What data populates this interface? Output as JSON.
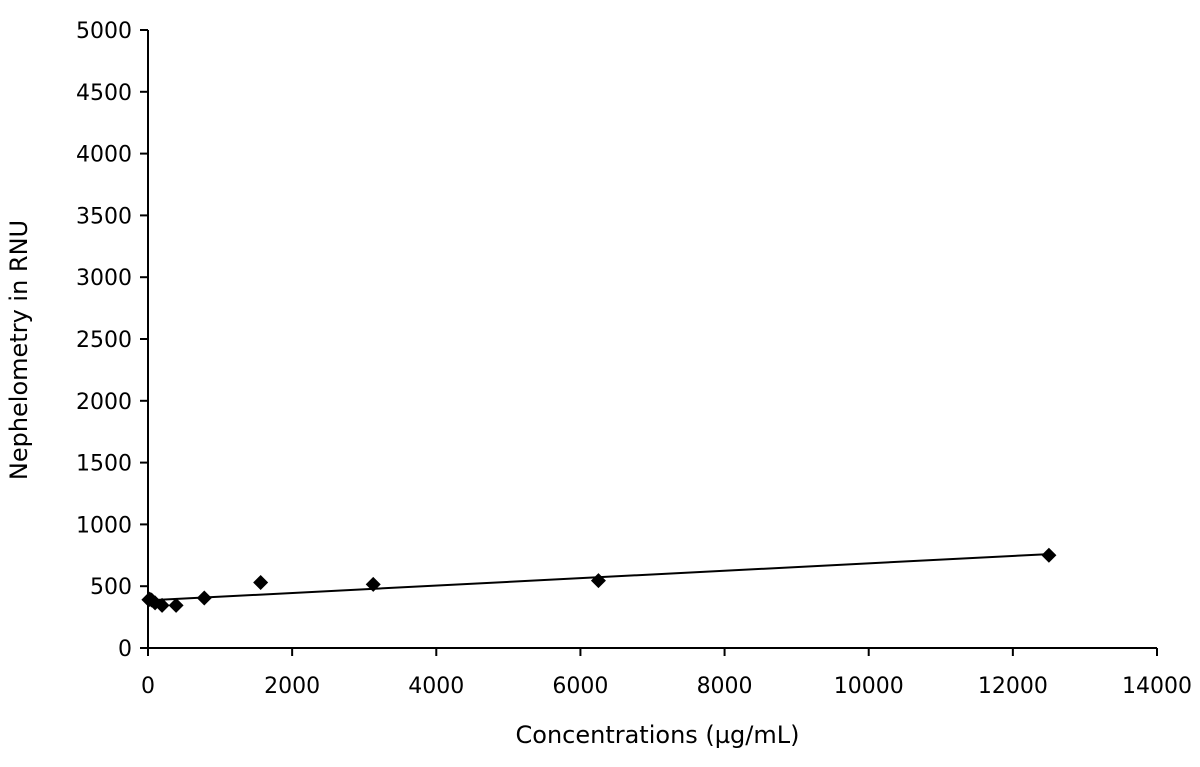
{
  "chart_data": {
    "type": "scatter",
    "title": "",
    "xlabel": "Concentrations (µg/mL)",
    "ylabel": "Nephelometry in RNU",
    "xlim": [
      0,
      14000
    ],
    "ylim": [
      0,
      5000
    ],
    "x_ticks": [
      0,
      2000,
      4000,
      6000,
      8000,
      10000,
      12000,
      14000
    ],
    "y_ticks": [
      0,
      500,
      1000,
      1500,
      2000,
      2500,
      3000,
      3500,
      4000,
      4500,
      5000
    ],
    "grid": false,
    "legend": "none",
    "marker": "diamond",
    "marker_color": "#000000",
    "series": [
      {
        "points": [
          {
            "x": 12,
            "y": 390
          },
          {
            "x": 24,
            "y": 395
          },
          {
            "x": 49,
            "y": 388
          },
          {
            "x": 98,
            "y": 365
          },
          {
            "x": 195,
            "y": 345
          },
          {
            "x": 390,
            "y": 345
          },
          {
            "x": 781,
            "y": 405
          },
          {
            "x": 1563,
            "y": 530
          },
          {
            "x": 3125,
            "y": 515
          },
          {
            "x": 6250,
            "y": 545
          },
          {
            "x": 12500,
            "y": 750
          }
        ]
      }
    ],
    "trendline": {
      "type": "linear",
      "from": {
        "x": 0,
        "y": 385
      },
      "to": {
        "x": 12500,
        "y": 760
      }
    }
  }
}
